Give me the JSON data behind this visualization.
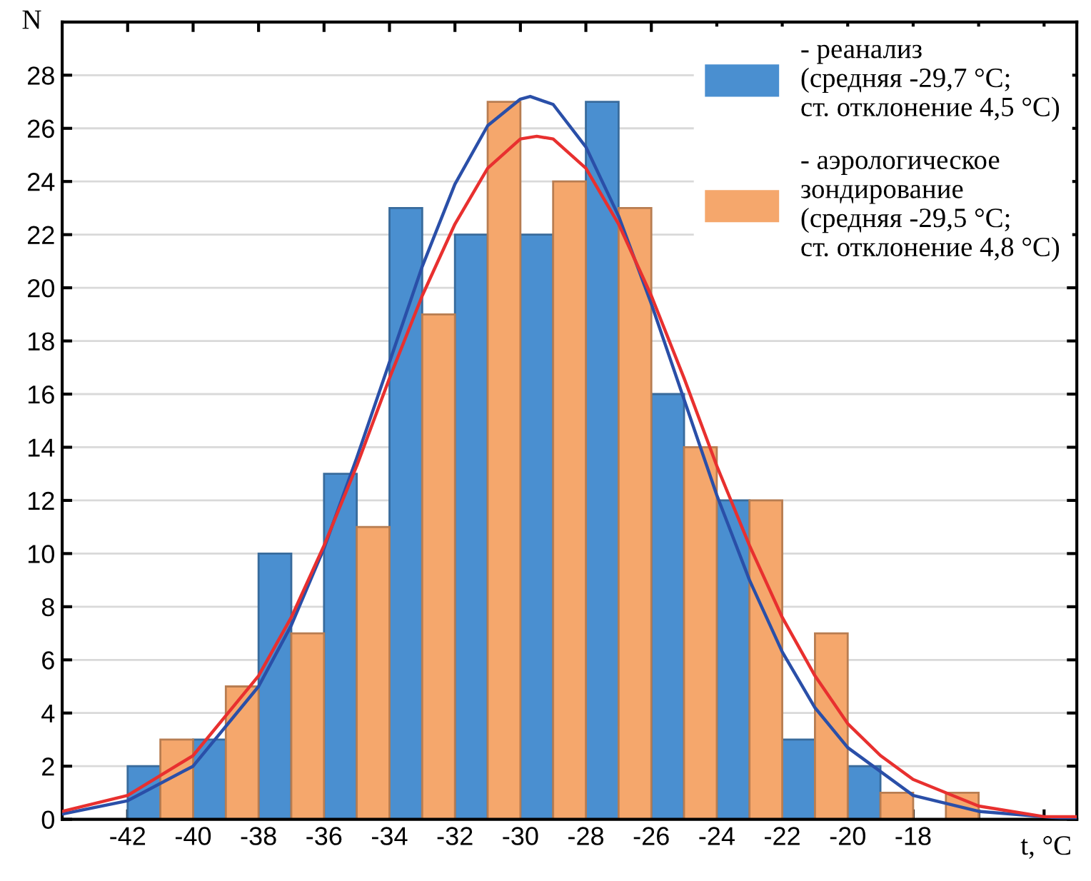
{
  "chart_data": {
    "type": "histogram",
    "xlabel": "t, °C",
    "ylabel": "N",
    "bins": [
      -42,
      -40,
      -38,
      -36,
      -34,
      -32,
      -30,
      -28,
      -26,
      -24,
      -22,
      -20,
      -18,
      -16
    ],
    "series": [
      {
        "name": "- реанализ\n(средняя -29,7 °C;\nст. отклонение 4,5 °C)",
        "color": "#4a8fd0",
        "values": [
          2,
          3,
          10,
          13,
          23,
          22,
          22,
          27,
          16,
          12,
          3,
          2,
          0
        ]
      },
      {
        "name": "- аэрологическое\nзондирование\n(средняя -29,5 °C;\nст. отклонение 4,8 °C)",
        "color": "#f5a76c",
        "values": [
          3,
          5,
          7,
          11,
          19,
          27,
          24,
          23,
          14,
          12,
          7,
          1,
          1
        ]
      },
      {
        "type": "line",
        "color": "#2a4fa8",
        "x": [
          -44,
          -42,
          -40,
          -38,
          -37,
          -36,
          -35,
          -34,
          -33,
          -32,
          -31,
          -30,
          -29.7,
          -29,
          -28,
          -27,
          -26,
          -25,
          -24,
          -23,
          -22,
          -21,
          -20,
          -18,
          -16,
          -13
        ],
        "values": [
          0.2,
          0.7,
          2.0,
          5.0,
          7.3,
          10.2,
          13.6,
          17.2,
          20.8,
          23.9,
          26.1,
          27.1,
          27.2,
          26.9,
          25.3,
          22.7,
          19.4,
          15.8,
          12.2,
          9.0,
          6.3,
          4.2,
          2.7,
          0.9,
          0.3,
          0.0
        ]
      },
      {
        "type": "line",
        "color": "#e8302f",
        "x": [
          -44,
          -42,
          -40,
          -38,
          -37,
          -36,
          -35,
          -34,
          -33,
          -32,
          -31,
          -30,
          -29.5,
          -29,
          -28,
          -27,
          -26,
          -25,
          -24,
          -23,
          -22,
          -21,
          -20,
          -19,
          -18,
          -16,
          -14,
          -13
        ],
        "values": [
          0.3,
          0.9,
          2.4,
          5.4,
          7.6,
          10.3,
          13.3,
          16.6,
          19.7,
          22.4,
          24.5,
          25.6,
          25.7,
          25.6,
          24.5,
          22.4,
          19.7,
          16.6,
          13.3,
          10.3,
          7.6,
          5.4,
          3.6,
          2.4,
          1.5,
          0.5,
          0.1,
          0.1
        ]
      }
    ],
    "xlim": [
      -44,
      -13
    ],
    "xticks": [
      -42,
      -40,
      -38,
      -36,
      -34,
      -32,
      -30,
      -28,
      -26,
      -24,
      -22,
      -20,
      -18,
      {
        "value": -16,
        "label": null
      },
      {
        "value": -14,
        "label": null
      }
    ],
    "ylim": [
      0,
      30
    ],
    "yticks": [
      0,
      2,
      4,
      6,
      8,
      10,
      12,
      14,
      16,
      18,
      20,
      22,
      24,
      26,
      28
    ],
    "grid": "y",
    "legend": "top right"
  }
}
